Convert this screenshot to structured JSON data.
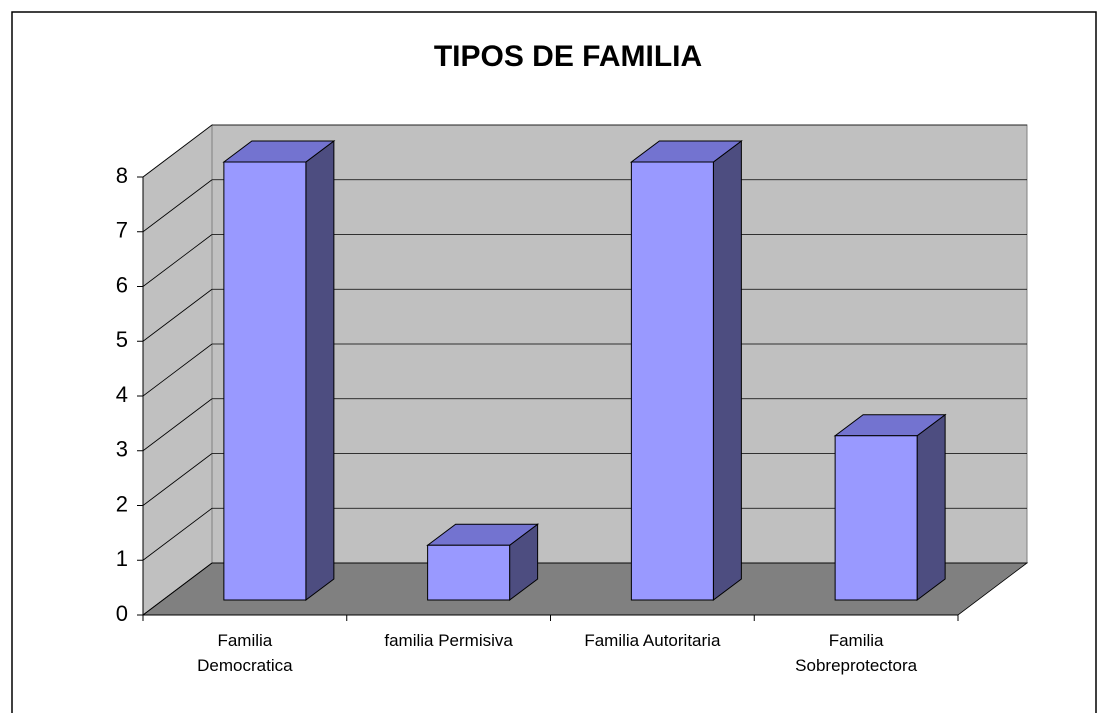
{
  "chart_data": {
    "type": "bar3d",
    "title": "TIPOS DE FAMILIA",
    "categories": [
      "Familia\nDemocratica",
      "familia Permisiva",
      "Familia Autoritaria",
      "Familia\nSobreprotectora"
    ],
    "values": [
      8,
      1,
      8,
      3
    ],
    "color": "#9999ff",
    "ylim": [
      0,
      8
    ],
    "yticks": [
      0,
      1,
      2,
      3,
      4,
      5,
      6,
      7,
      8
    ],
    "grid": true
  }
}
